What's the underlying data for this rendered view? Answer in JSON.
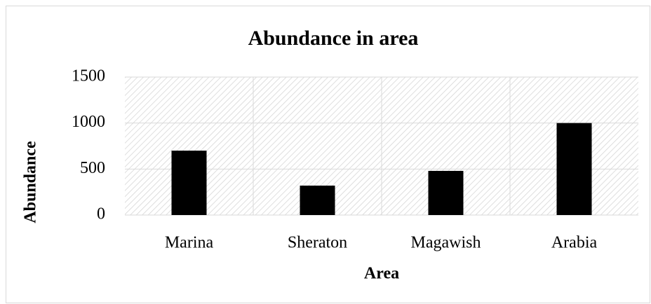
{
  "chart_data": {
    "type": "bar",
    "title": "Abundance in area",
    "x_label": "Area",
    "y_label": "Abundance",
    "categories": [
      "Marina",
      "Sheraton",
      "Magawish",
      "Arabia"
    ],
    "values": [
      700,
      320,
      480,
      1000
    ],
    "color": "#000000",
    "ylim": [
      0,
      1500
    ],
    "yticks": [
      0,
      500,
      1000,
      1500
    ],
    "grid": true
  }
}
